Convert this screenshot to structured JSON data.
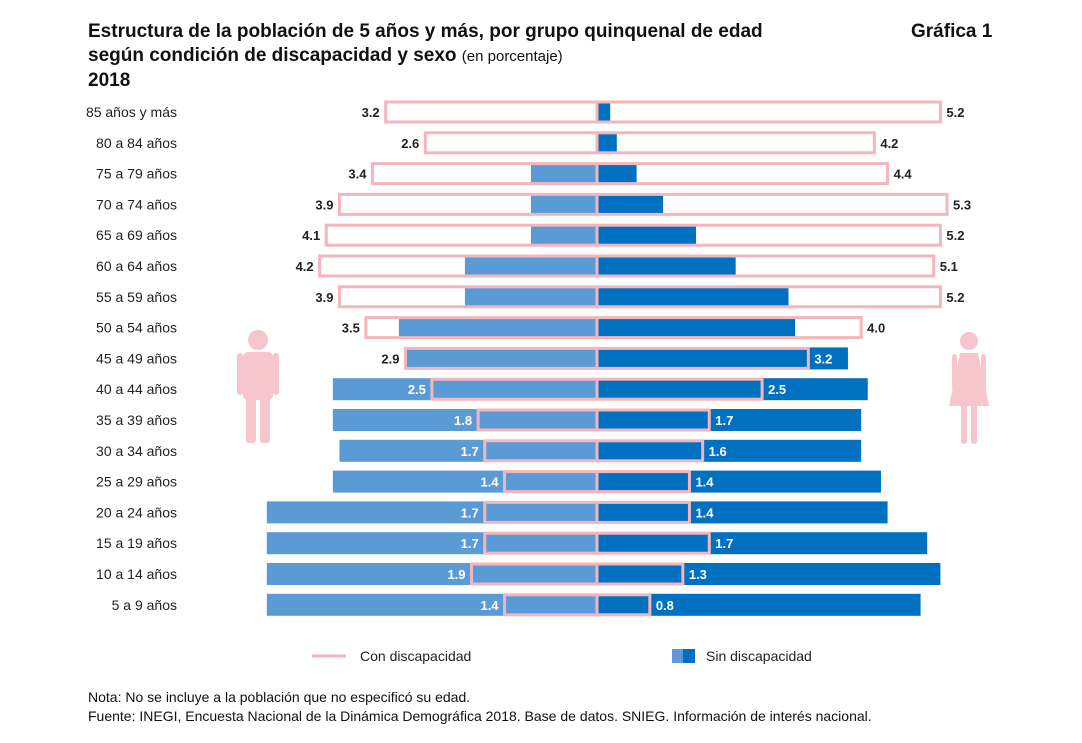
{
  "header": {
    "title_line1": "Estructura de la población de 5 años y más, por grupo quinquenal de edad",
    "title_line2": "según condición de discapacidad y sexo",
    "title_unit": "(en porcentaje)",
    "title_year": "2018",
    "graph_number": "Gráfica 1"
  },
  "footer": {
    "note": "Nota: No se incluye a la población que no especificó su edad.",
    "source": "Fuente: INEGI, Encuesta Nacional de la Dinámica Demográfica 2018. Base de datos. SNIEG. Información de interés nacional."
  },
  "colors": {
    "male_sin": "#5B9BD5",
    "female_sin": "#0070C0",
    "con_outline": "#F4B6BE",
    "icon": "#F7C6CC"
  },
  "icons": {
    "male": "man-icon",
    "female": "woman-icon"
  },
  "chart_data": {
    "type": "bar",
    "orientation": "horizontal",
    "categories": [
      "85 años y más",
      "80 a 84 años",
      "75 a 79 años",
      "70 a 74 años",
      "65 a 69 años",
      "60 a 64 años",
      "55 a 59 años",
      "50 a 54 años",
      "45 a 49 años",
      "40 a 44 años",
      "35 a 39 años",
      "30 a 34 años",
      "25 a 29 años",
      "20 a 24 años",
      "15 a 19 años",
      "10 a 14 años",
      "5 a 9 años"
    ],
    "series": [
      {
        "name": "Con discapacidad",
        "side": "hombres",
        "values": [
          3.2,
          2.6,
          3.4,
          3.9,
          4.1,
          4.2,
          3.9,
          3.5,
          2.9,
          2.5,
          1.8,
          1.7,
          1.4,
          1.7,
          1.7,
          1.9,
          1.4
        ]
      },
      {
        "name": "Con discapacidad",
        "side": "mujeres",
        "values": [
          5.2,
          4.2,
          4.4,
          5.3,
          5.2,
          5.1,
          5.2,
          4.0,
          3.2,
          2.5,
          1.7,
          1.6,
          1.4,
          1.4,
          1.7,
          1.3,
          0.8
        ]
      },
      {
        "name": "Sin discapacidad",
        "side": "hombres",
        "values": [
          0.0,
          0.0,
          1.0,
          1.0,
          1.0,
          2.0,
          2.0,
          3.0,
          2.9,
          4.0,
          4.0,
          3.9,
          4.0,
          5.0,
          5.0,
          5.0,
          5.0
        ]
      },
      {
        "name": "Sin discapacidad",
        "side": "mujeres",
        "values": [
          0.2,
          0.3,
          0.6,
          1.0,
          1.5,
          2.1,
          2.9,
          3.0,
          3.8,
          4.1,
          4.0,
          4.0,
          4.3,
          4.4,
          5.0,
          5.2,
          4.9
        ]
      }
    ],
    "legend": [
      "Con discapacidad",
      "Sin discapacidad"
    ],
    "legend_position": "bottom",
    "xlim": [
      -5.3,
      5.3
    ],
    "grid": false
  }
}
